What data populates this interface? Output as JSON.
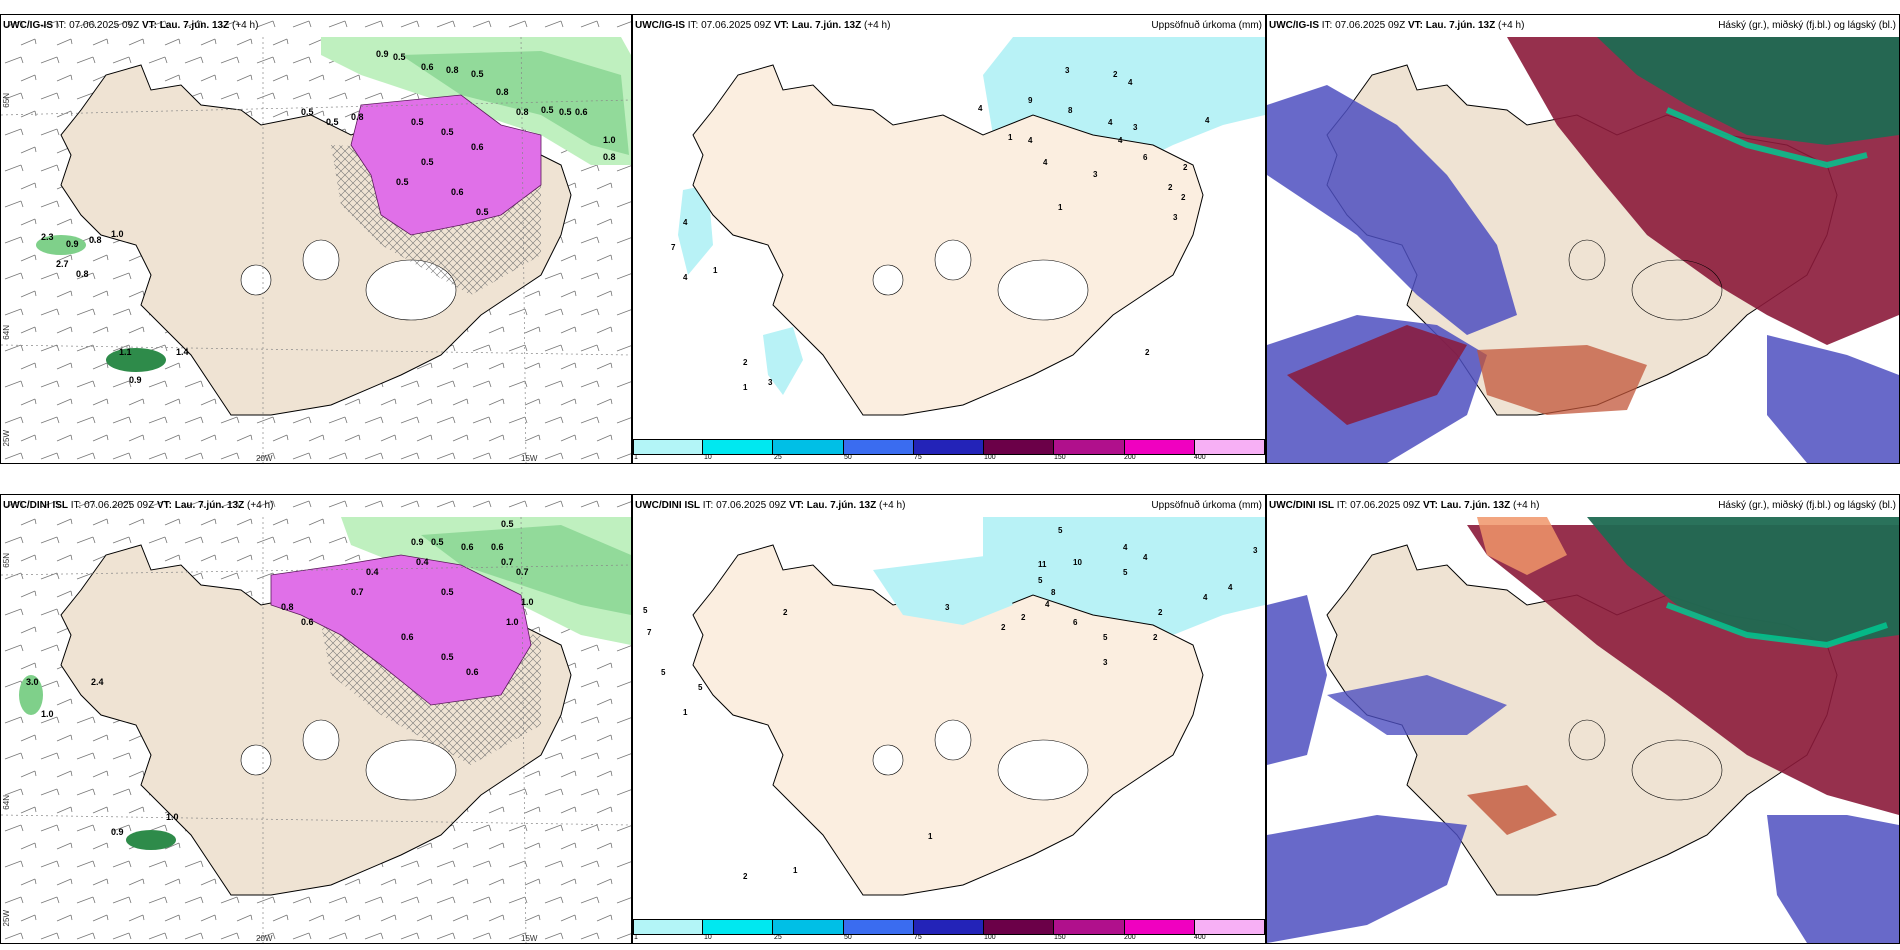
{
  "rows": [
    {
      "model": "UWC/IG-IS",
      "panels": [
        {
          "model": "UWC/IG-IS",
          "it_label": "IT:",
          "it_value": "07.06.2025 09Z",
          "vt_label": "VT:",
          "vt_value": "Lau. 7.jún. 13Z",
          "lead": "(+4 h)",
          "right_title": ""
        },
        {
          "model": "UWC/IG-IS",
          "it_label": "IT:",
          "it_value": "07.06.2025 09Z",
          "vt_label": "VT:",
          "vt_value": "Lau. 7.jún. 13Z",
          "lead": "(+4 h)",
          "right_title": "Uppsöfnuð úrkoma (mm)"
        },
        {
          "model": "UWC/IG-IS",
          "it_label": "IT:",
          "it_value": "07.06.2025 09Z",
          "vt_label": "VT:",
          "vt_value": "Lau. 7.jún. 13Z",
          "lead": "(+4 h)",
          "right_title": "Háský (gr.), miðský (fj.bl.) og lágský (bl.)"
        }
      ]
    },
    {
      "model": "UWC/DINI ISL",
      "panels": [
        {
          "model": "UWC/DINI ISL",
          "it_label": "IT:",
          "it_value": "07.06.2025 09Z",
          "vt_label": "VT:",
          "vt_value": "Lau. 7.jún. 13Z",
          "lead": "(+4 h)",
          "right_title": ""
        },
        {
          "model": "UWC/DINI ISL",
          "it_label": "IT:",
          "it_value": "07.06.2025 09Z",
          "vt_label": "VT:",
          "vt_value": "Lau. 7.jún. 13Z",
          "lead": "(+4 h)",
          "right_title": "Uppsöfnuð úrkoma (mm)"
        },
        {
          "model": "UWC/DINI ISL",
          "it_label": "IT:",
          "it_value": "07.06.2025 09Z",
          "vt_label": "VT:",
          "vt_value": "Lau. 7.jún. 13Z",
          "lead": "(+4 h)",
          "right_title": "Háský (gr.), miðský (fj.bl.) og lágský (bl.)"
        }
      ]
    }
  ],
  "axis_labels": {
    "lon_20w": "20W",
    "lon_15w": "15W",
    "lon_25w": "25W",
    "lat_65n": "65N",
    "lat_64n": "64N"
  },
  "precip_colorbar": {
    "ticks": [
      "1",
      "10",
      "25",
      "50",
      "75",
      "100",
      "150",
      "200",
      "400"
    ],
    "colors": [
      "#b3f5f7",
      "#00e8f0",
      "#00bfe6",
      "#3a6cf0",
      "#2323b8",
      "#6b0048",
      "#b0108c",
      "#f000c0",
      "#f7b0f5"
    ]
  },
  "panel_a_values_top": [
    "0.9",
    "0.5",
    "0.6",
    "0.8",
    "0.5",
    "0.8",
    "0.8",
    "0.5",
    "0.5",
    "0.6",
    "1.0",
    "0.8",
    "0.5",
    "0.5",
    "0.8",
    "0.5",
    "0.5",
    "0.6",
    "0.5",
    "0.5",
    "0.6",
    "0.5",
    "2.3",
    "0.9",
    "0.8",
    "1.0",
    "2.7",
    "0.8",
    "0.9",
    "1.1",
    "1.4"
  ],
  "panel_b_values_top": [
    "3",
    "2",
    "4",
    "8",
    "4",
    "3",
    "6",
    "4",
    "3",
    "2",
    "4",
    "2",
    "2",
    "3",
    "4",
    "9",
    "1",
    "4",
    "4",
    "1",
    "7",
    "4",
    "4",
    "1",
    "2",
    "3",
    "1",
    "2"
  ],
  "panel_a_values_bottom": [
    "0.5",
    "0.9",
    "0.5",
    "0.4",
    "0.6",
    "0.6",
    "0.7",
    "0.7",
    "1.0",
    "1.0",
    "0.8",
    "0.6",
    "0.7",
    "0.4",
    "0.5",
    "0.6",
    "0.5",
    "0.6",
    "3.0",
    "2.4",
    "1.0",
    "0.9",
    "1.0"
  ],
  "panel_b_values_bottom": [
    "5",
    "4",
    "4",
    "3",
    "5",
    "10",
    "11",
    "5",
    "8",
    "4",
    "4",
    "4",
    "6",
    "5",
    "2",
    "2",
    "3",
    "2",
    "2",
    "7",
    "5",
    "5",
    "1",
    "2",
    "1",
    "1",
    "2",
    "5",
    "3"
  ],
  "colors": {
    "land": "#efe3d3",
    "land_precip": "#fbeee0",
    "sea": "#ffffff",
    "precip_light": "#b8f2f6",
    "green_light": "#bff0bf",
    "green_mid": "#7fd08a",
    "green_dark": "#2e8b4a",
    "magenta": "#e070e8",
    "high_cloud_green": "#1f6a52",
    "mid_cloud_red": "#8b1a3a",
    "low_cloud_blue": "#4e4fc0"
  }
}
